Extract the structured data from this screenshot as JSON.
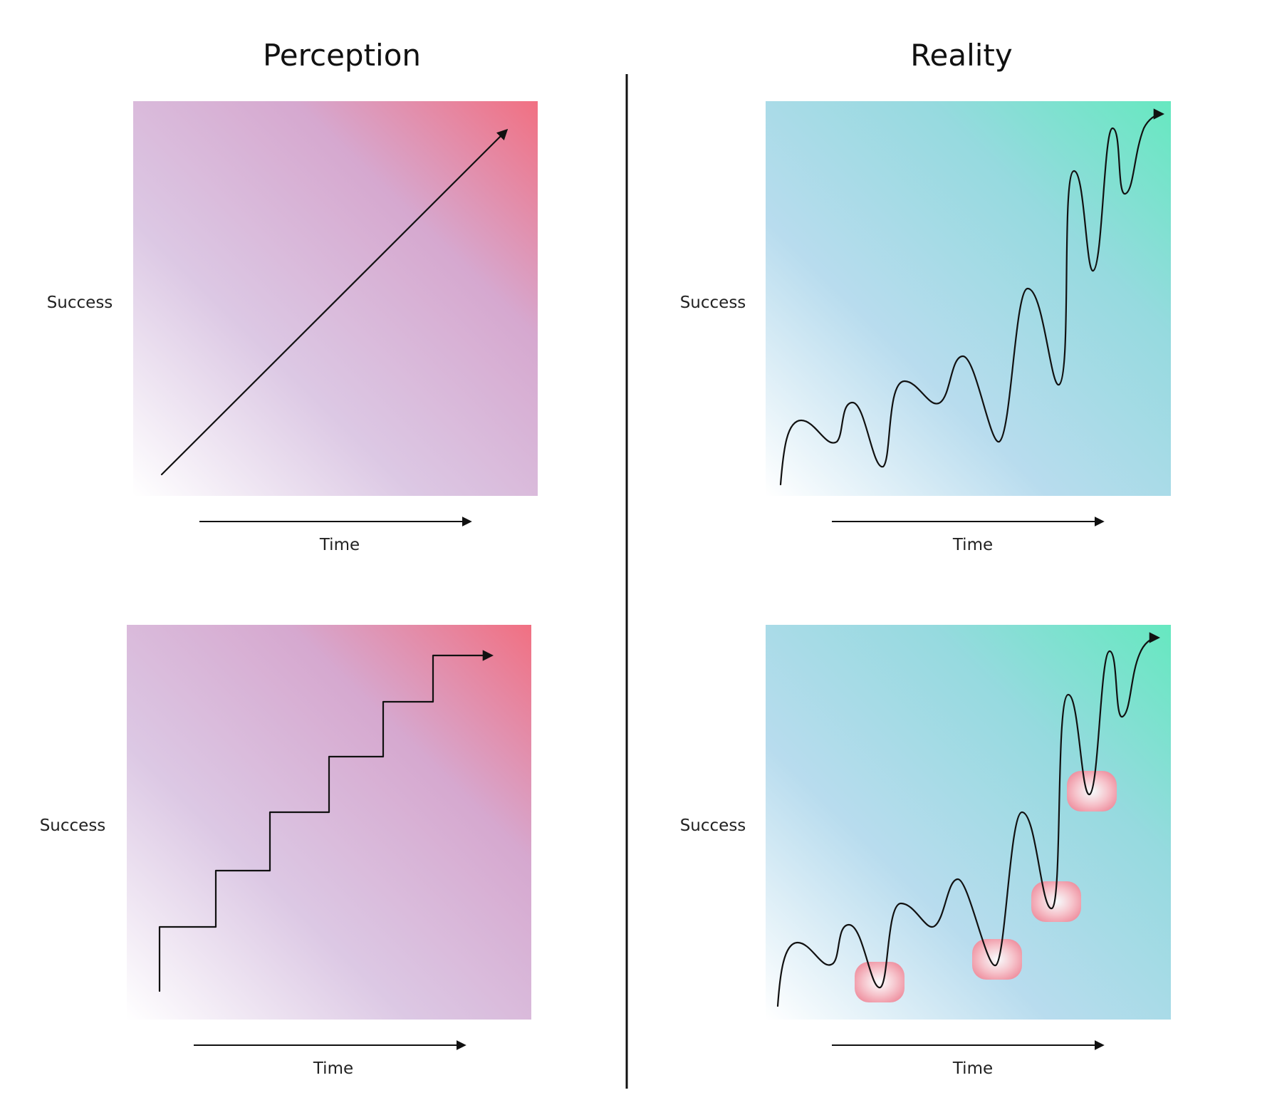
{
  "columns": {
    "left_title": "Perception",
    "right_title": "Reality"
  },
  "panels": [
    {
      "id": "perception-linear",
      "y_axis_label": "Success",
      "x_axis_label": "Time",
      "curve": "straight-line"
    },
    {
      "id": "reality-wavy",
      "y_axis_label": "Success",
      "x_axis_label": "Time",
      "curve": "oscillating"
    },
    {
      "id": "perception-steps",
      "y_axis_label": "Success",
      "x_axis_label": "Time",
      "curve": "staircase"
    },
    {
      "id": "reality-wavy-highlighted",
      "y_axis_label": "Success",
      "x_axis_label": "Time",
      "curve": "oscillating",
      "highlighted_dips": 4
    }
  ],
  "colors": {
    "perception_gradient": [
      "#ffffff",
      "#dcc8e4",
      "#d6a8cf",
      "#f17082"
    ],
    "reality_gradient": [
      "#ffffff",
      "#b8dcee",
      "#96dadf",
      "#66e8c0"
    ],
    "highlight": "#f2a0ad",
    "ink": "#111111"
  }
}
